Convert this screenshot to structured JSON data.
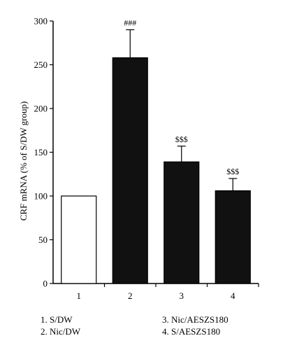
{
  "chart_data": {
    "type": "bar",
    "categories": [
      "1",
      "2",
      "3",
      "4"
    ],
    "values": [
      100,
      258,
      139,
      106
    ],
    "errors": [
      0,
      32,
      18,
      14
    ],
    "annotations": [
      "",
      "###",
      "$$$",
      "$$$"
    ],
    "bar_colors": [
      "#ffffff",
      "#111111",
      "#111111",
      "#111111"
    ],
    "title": "",
    "xlabel": "",
    "ylabel": "CRF mRNA (% of S/DW group)",
    "ylim": [
      0,
      300
    ],
    "yticks": [
      0,
      50,
      100,
      150,
      200,
      250,
      300
    ],
    "grid": false
  },
  "legend": {
    "left": [
      "1. S/DW",
      "2. Nic/DW"
    ],
    "right": [
      "3. Nic/AESZS180",
      "4. S/AESZS180"
    ]
  }
}
